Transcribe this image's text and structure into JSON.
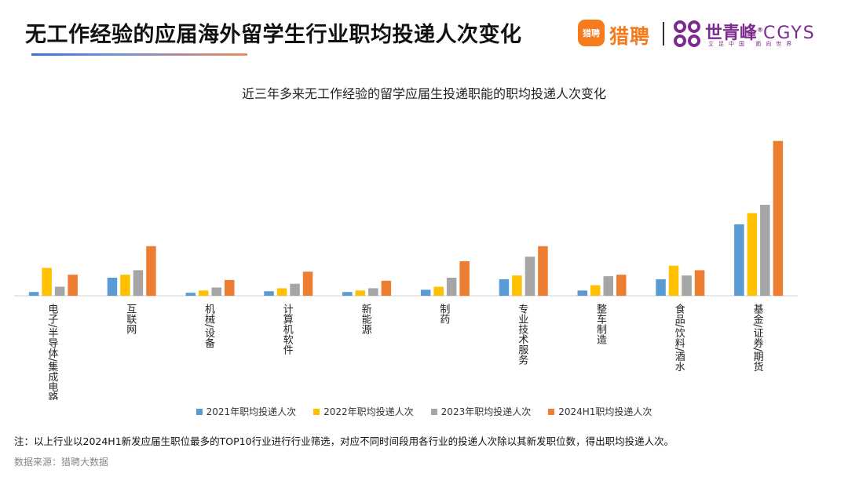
{
  "header": {
    "title": "无工作经验的应届海外留学生行业职均投递人次变化",
    "logo_liepin_icon_text": "猎聘",
    "logo_liepin_text": "猎聘",
    "logo_cgys_name": "世青峰",
    "logo_cgys_mark": "®",
    "logo_cgys_latin": "CGYS",
    "logo_cgys_subtitle": "立足中国 面向世界"
  },
  "colors": {
    "series": [
      "#5b9bd5",
      "#ffc000",
      "#a5a5a5",
      "#ed7d31"
    ],
    "title_accent_blue": "#3d6fd6",
    "title_accent_orange": "#f08a5a",
    "liepin_orange": "#f57b1e",
    "cgys_purple": "#7b2a8e"
  },
  "chart_data": {
    "type": "bar",
    "title": "近三年多来无工作经验的留学应届生投递职能的职均投递人次变化",
    "categories": [
      "电子/半导体/集成电路",
      "互联网",
      "机械/设备",
      "计算机软件",
      "新能源",
      "制药",
      "专业技术服务",
      "整车制造",
      "食品/饮料/酒水",
      "基金/证券/期货"
    ],
    "series": [
      {
        "name": "2021年职均投递人次",
        "values": [
          5,
          24,
          4,
          6,
          5,
          8,
          22,
          7,
          22,
          95
        ]
      },
      {
        "name": "2022年职均投递人次",
        "values": [
          37,
          28,
          7,
          10,
          7,
          12,
          27,
          14,
          40,
          110
        ]
      },
      {
        "name": "2023年职均投递人次",
        "values": [
          12,
          34,
          11,
          16,
          10,
          24,
          52,
          26,
          27,
          121
        ]
      },
      {
        "name": "2024H1职均投递人次",
        "values": [
          28,
          66,
          21,
          32,
          20,
          46,
          66,
          28,
          34,
          206
        ]
      }
    ],
    "ylim": [
      0,
      215
    ],
    "grid": false,
    "legend_position": "bottom"
  },
  "footer": {
    "note": "注：以上行业以2024H1新发应届生职位最多的TOP10行业进行行业筛选，对应不同时间段用各行业的投递人次除以其新发职位数，得出职均投递人次。",
    "source": "数据来源：猎聘大数据"
  }
}
